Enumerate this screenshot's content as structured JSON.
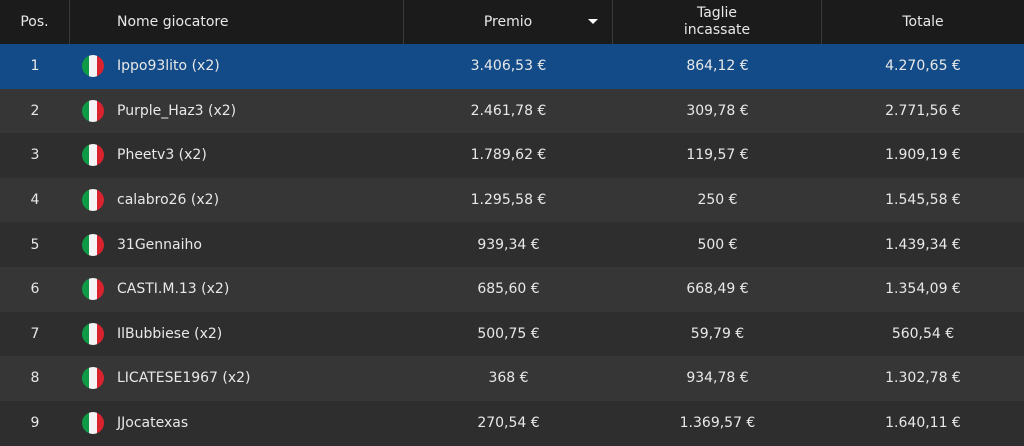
{
  "table": {
    "columns": [
      "Pos.",
      "Nome giocatore",
      "Premio",
      "Taglie incassate",
      "Totale"
    ],
    "rows": [
      [
        "1",
        "Ippo93lito (x2)",
        "3.406,53 €",
        "864,12 €",
        "4.270,65 €"
      ],
      [
        "2",
        "Purple_Haz3 (x2)",
        "2.461,78 €",
        "309,78 €",
        "2.771,56 €"
      ],
      [
        "3",
        "Pheetv3 (x2)",
        "1.789,62 €",
        "119,57 €",
        "1.909,19 €"
      ],
      [
        "4",
        "calabro26 (x2)",
        "1.295,58 €",
        "250 €",
        "1.545,58 €"
      ],
      [
        "5",
        "31Gennaiho",
        "939,34 €",
        "500 €",
        "1.439,34 €"
      ],
      [
        "6",
        "CASTI.M.13 (x2)",
        "685,60 €",
        "668,49 €",
        "1.354,09 €"
      ],
      [
        "7",
        "IlBubbiese (x2)",
        "500,75 €",
        "59,79 €",
        "560,54 €"
      ],
      [
        "8",
        "LICATESE1967 (x2)",
        "368 €",
        "934,78 €",
        "1.302,78 €"
      ],
      [
        "9",
        "JJocatexas",
        "270,54 €",
        "1.369,57 €",
        "1.640,11 €"
      ]
    ]
  }
}
